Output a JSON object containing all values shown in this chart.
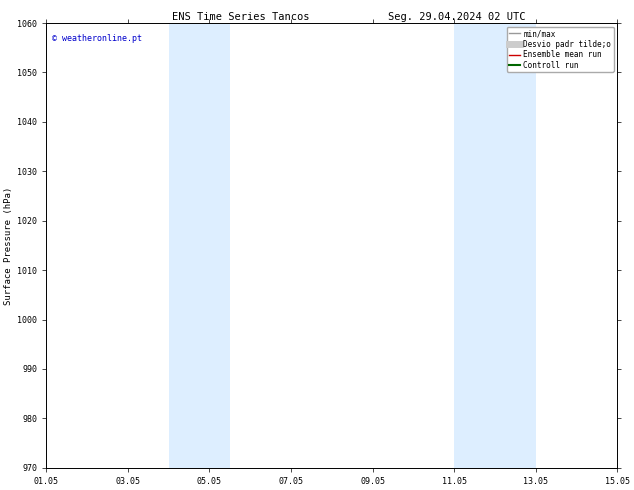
{
  "title_left": "ENS Time Series Tancos",
  "title_right": "Seg. 29.04.2024 02 UTC",
  "ylabel": "Surface Pressure (hPa)",
  "ylim": [
    970,
    1060
  ],
  "yticks": [
    970,
    980,
    990,
    1000,
    1010,
    1020,
    1030,
    1040,
    1050,
    1060
  ],
  "xlim": [
    1,
    15
  ],
  "x_tick_labels": [
    "01.05",
    "03.05",
    "05.05",
    "07.05",
    "09.05",
    "11.05",
    "13.05",
    "15.05"
  ],
  "x_tick_positions": [
    1,
    3,
    5,
    7,
    9,
    11,
    13,
    15
  ],
  "shaded_bands": [
    {
      "xmin": 4.0,
      "xmax": 5.5
    },
    {
      "xmin": 11.0,
      "xmax": 13.0
    }
  ],
  "shade_color": "#ddeeff",
  "shade_alpha": 1.0,
  "watermark_text": "© weatheronline.pt",
  "watermark_color": "#0000cc",
  "watermark_fontsize": 6,
  "legend_entries": [
    {
      "label": "min/max",
      "color": "#999999",
      "lw": 1.0
    },
    {
      "label": "Desvio padr tilde;o",
      "color": "#cccccc",
      "lw": 5
    },
    {
      "label": "Ensemble mean run",
      "color": "#cc0000",
      "lw": 1.0
    },
    {
      "label": "Controll run",
      "color": "#006600",
      "lw": 1.5
    }
  ],
  "background_color": "#ffffff",
  "title_fontsize": 7.5,
  "ylabel_fontsize": 6.5,
  "legend_fontsize": 5.5,
  "tick_fontsize": 6
}
